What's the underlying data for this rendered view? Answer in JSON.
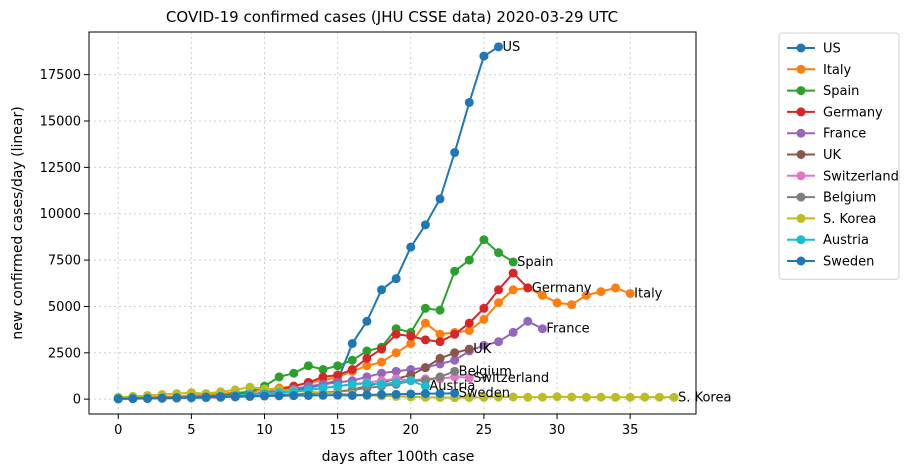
{
  "chart_data": {
    "type": "line",
    "title": "COVID-19 confirmed cases (JHU CSSE data) 2020-03-29 UTC",
    "xlabel": "days after 100th case",
    "ylabel": "new confirmed cases/day (linear)",
    "xlim": [
      -2,
      39.5
    ],
    "ylim": [
      -800,
      19800
    ],
    "xticks": [
      0,
      5,
      10,
      15,
      20,
      25,
      30,
      35
    ],
    "yticks": [
      0,
      2500,
      5000,
      7500,
      10000,
      12500,
      15000,
      17500
    ],
    "grid": true,
    "legend_position": "outside-right",
    "series": [
      {
        "name": "US",
        "color": "#1f77b4",
        "x": [
          0,
          1,
          2,
          3,
          4,
          5,
          6,
          7,
          8,
          9,
          10,
          11,
          12,
          13,
          14,
          15,
          16,
          17,
          18,
          19,
          20,
          21,
          22,
          23,
          24,
          25,
          26
        ],
        "y": [
          60,
          70,
          65,
          80,
          90,
          100,
          110,
          150,
          200,
          250,
          300,
          400,
          500,
          600,
          800,
          1000,
          3000,
          4200,
          5900,
          6500,
          8200,
          9400,
          10800,
          13300,
          16000,
          18500,
          19000
        ]
      },
      {
        "name": "Italy",
        "color": "#ff7f0e",
        "x": [
          0,
          1,
          2,
          3,
          4,
          5,
          6,
          7,
          8,
          9,
          10,
          11,
          12,
          13,
          14,
          15,
          16,
          17,
          18,
          19,
          20,
          21,
          22,
          23,
          24,
          25,
          26,
          27,
          28,
          29,
          30,
          31,
          32,
          33,
          34,
          35
        ],
        "y": [
          50,
          80,
          100,
          120,
          150,
          200,
          250,
          300,
          350,
          400,
          500,
          600,
          700,
          900,
          1000,
          1200,
          1500,
          1800,
          2000,
          2500,
          3000,
          4100,
          3500,
          3600,
          3700,
          4300,
          5200,
          5900,
          6000,
          5600,
          5200,
          5100,
          5600,
          5800,
          6000,
          5700
        ]
      },
      {
        "name": "Spain",
        "color": "#2ca02c",
        "x": [
          0,
          1,
          2,
          3,
          4,
          5,
          6,
          7,
          8,
          9,
          10,
          11,
          12,
          13,
          14,
          15,
          16,
          17,
          18,
          19,
          20,
          21,
          22,
          23,
          24,
          25,
          26,
          27
        ],
        "y": [
          30,
          40,
          50,
          60,
          80,
          100,
          150,
          200,
          300,
          400,
          700,
          1200,
          1400,
          1800,
          1600,
          1800,
          2100,
          2600,
          2800,
          3800,
          3600,
          4900,
          4800,
          6900,
          7500,
          8600,
          7900,
          7400
        ]
      },
      {
        "name": "Germany",
        "color": "#d62728",
        "x": [
          0,
          1,
          2,
          3,
          4,
          5,
          6,
          7,
          8,
          9,
          10,
          11,
          12,
          13,
          14,
          15,
          16,
          17,
          18,
          19,
          20,
          21,
          22,
          23,
          24,
          25,
          26,
          27,
          28
        ],
        "y": [
          40,
          50,
          60,
          70,
          80,
          100,
          130,
          170,
          220,
          280,
          350,
          500,
          700,
          900,
          1200,
          1300,
          1600,
          2200,
          2700,
          3500,
          3400,
          3200,
          3100,
          3500,
          4100,
          4900,
          5900,
          6800,
          6000
        ]
      },
      {
        "name": "France",
        "color": "#9467bd",
        "x": [
          0,
          1,
          2,
          3,
          4,
          5,
          6,
          7,
          8,
          9,
          10,
          11,
          12,
          13,
          14,
          15,
          16,
          17,
          18,
          19,
          20,
          21,
          22,
          23,
          24,
          25,
          26,
          27,
          28,
          29
        ],
        "y": [
          30,
          40,
          50,
          60,
          80,
          100,
          120,
          150,
          200,
          250,
          350,
          450,
          550,
          700,
          800,
          900,
          1000,
          1200,
          1400,
          1500,
          1600,
          1700,
          1900,
          2100,
          2600,
          2900,
          3100,
          3600,
          4200,
          3800
        ]
      },
      {
        "name": "UK",
        "color": "#8c564b",
        "x": [
          0,
          1,
          2,
          3,
          4,
          5,
          6,
          7,
          8,
          9,
          10,
          11,
          12,
          13,
          14,
          15,
          16,
          17,
          18,
          19,
          20,
          21,
          22,
          23,
          24
        ],
        "y": [
          20,
          30,
          40,
          50,
          60,
          70,
          80,
          100,
          120,
          150,
          180,
          200,
          250,
          300,
          350,
          400,
          500,
          700,
          900,
          1100,
          1300,
          1700,
          2200,
          2500,
          2700
        ]
      },
      {
        "name": "Switzerland",
        "color": "#e377c2",
        "x": [
          0,
          1,
          2,
          3,
          4,
          5,
          6,
          7,
          8,
          9,
          10,
          11,
          12,
          13,
          14,
          15,
          16,
          17,
          18,
          19,
          20,
          21,
          22,
          23,
          24
        ],
        "y": [
          20,
          30,
          40,
          50,
          60,
          70,
          80,
          100,
          150,
          200,
          250,
          300,
          400,
          500,
          600,
          700,
          800,
          900,
          1000,
          1100,
          1000,
          1100,
          1100,
          1200,
          1150
        ]
      },
      {
        "name": "Belgium",
        "color": "#7f7f7f",
        "x": [
          0,
          1,
          2,
          3,
          4,
          5,
          6,
          7,
          8,
          9,
          10,
          11,
          12,
          13,
          14,
          15,
          16,
          17,
          18,
          19,
          20,
          21,
          22,
          23
        ],
        "y": [
          20,
          30,
          40,
          50,
          60,
          70,
          80,
          100,
          120,
          150,
          180,
          200,
          250,
          300,
          350,
          400,
          500,
          600,
          700,
          800,
          1000,
          1000,
          1200,
          1500
        ]
      },
      {
        "name": "S. Korea",
        "color": "#bcbd22",
        "x": [
          0,
          1,
          2,
          3,
          4,
          5,
          6,
          7,
          8,
          9,
          10,
          11,
          12,
          13,
          14,
          15,
          16,
          17,
          18,
          19,
          20,
          21,
          22,
          23,
          24,
          25,
          26,
          27,
          28,
          29,
          30,
          31,
          32,
          33,
          34,
          35,
          36,
          37,
          38
        ],
        "y": [
          100,
          150,
          200,
          250,
          300,
          350,
          300,
          400,
          500,
          650,
          550,
          500,
          450,
          400,
          350,
          300,
          250,
          200,
          180,
          150,
          120,
          100,
          90,
          80,
          90,
          100,
          110,
          120,
          100,
          110,
          130,
          120,
          100,
          110,
          100,
          105,
          110,
          105,
          100
        ]
      },
      {
        "name": "Austria",
        "color": "#17becf",
        "x": [
          0,
          1,
          2,
          3,
          4,
          5,
          6,
          7,
          8,
          9,
          10,
          11,
          12,
          13,
          14,
          15,
          16,
          17,
          18,
          19,
          20,
          21
        ],
        "y": [
          30,
          40,
          50,
          60,
          70,
          80,
          100,
          150,
          200,
          250,
          300,
          350,
          400,
          500,
          600,
          700,
          800,
          850,
          800,
          900,
          1000,
          700
        ]
      },
      {
        "name": "Sweden",
        "color": "#1f77b4",
        "x": [
          0,
          1,
          2,
          3,
          4,
          5,
          6,
          7,
          8,
          9,
          10,
          11,
          12,
          13,
          14,
          15,
          16,
          17,
          18,
          19,
          20,
          21,
          22,
          23
        ],
        "y": [
          20,
          30,
          40,
          60,
          80,
          100,
          120,
          140,
          150,
          160,
          170,
          180,
          190,
          200,
          210,
          220,
          200,
          230,
          250,
          260,
          280,
          300,
          300,
          320
        ]
      }
    ],
    "annotations": [
      {
        "text": "US",
        "x": 26,
        "y": 19000
      },
      {
        "text": "Spain",
        "x": 27,
        "y": 7400
      },
      {
        "text": "Germany",
        "x": 28,
        "y": 6000
      },
      {
        "text": "Italy",
        "x": 35,
        "y": 5700
      },
      {
        "text": "France",
        "x": 29,
        "y": 3800
      },
      {
        "text": "UK",
        "x": 24,
        "y": 2700
      },
      {
        "text": "Belgium",
        "x": 23,
        "y": 1500
      },
      {
        "text": "Switzerland",
        "x": 24,
        "y": 1150
      },
      {
        "text": "Austria",
        "x": 21,
        "y": 700
      },
      {
        "text": "Sweden",
        "x": 23,
        "y": 320
      },
      {
        "text": "S. Korea",
        "x": 38,
        "y": 100
      }
    ]
  }
}
